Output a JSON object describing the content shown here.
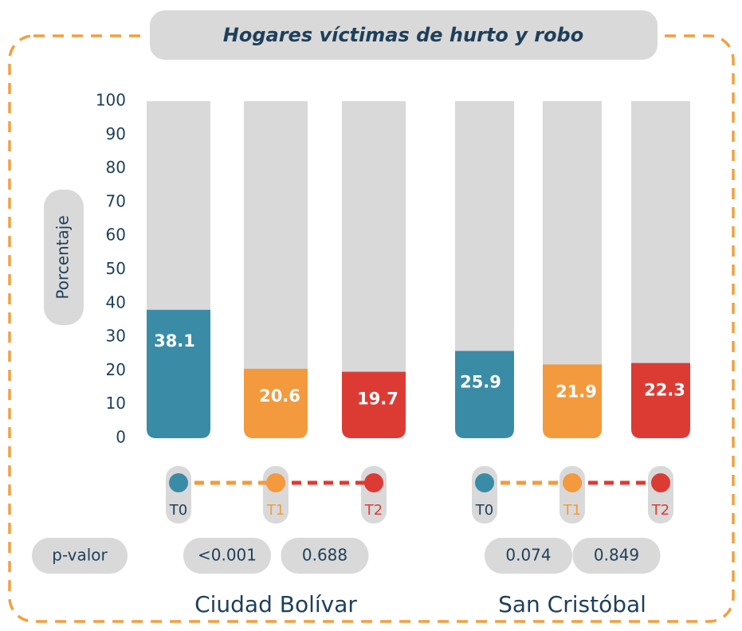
{
  "chart_data": {
    "type": "bar",
    "title": "Hogares víctimas de hurto y robo",
    "y_label": "Porcentaje",
    "groups": [
      "Ciudad Bolívar",
      "San Cristóbal"
    ],
    "series": [
      {
        "name": "T0",
        "color": "#3a8ca6",
        "values": [
          38.1,
          25.9
        ]
      },
      {
        "name": "T1",
        "color": "#f39a3e",
        "values": [
          20.6,
          21.9
        ]
      },
      {
        "name": "T2",
        "color": "#dc3b34",
        "values": [
          19.7,
          22.3
        ]
      }
    ],
    "ylim": [
      0,
      100
    ],
    "yticks": [
      0,
      10,
      20,
      30,
      40,
      50,
      60,
      70,
      80,
      90,
      100
    ],
    "p_value_label": "p-valor",
    "p_values": [
      [
        "<0.001",
        "0.688"
      ],
      [
        "0.074",
        "0.849"
      ]
    ]
  }
}
